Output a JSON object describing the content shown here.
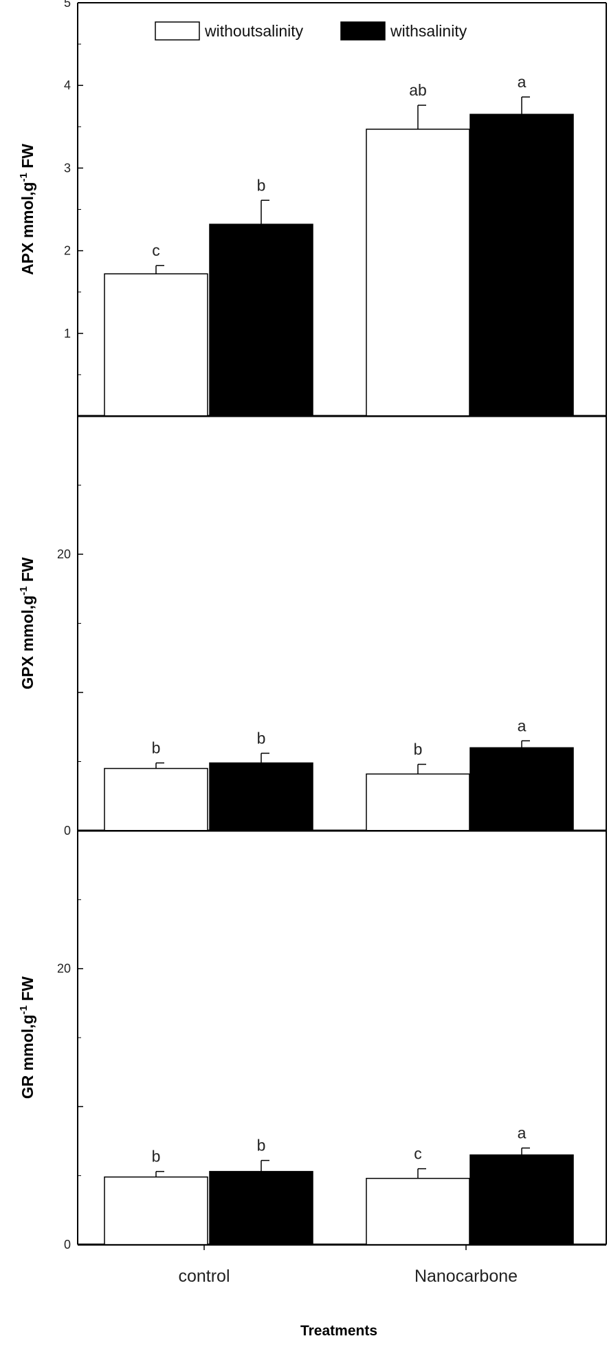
{
  "chart_data": [
    {
      "type": "bar",
      "categories": [
        "control",
        "Nanocarbone"
      ],
      "ylabel": "APX mmol,g-1 FW",
      "ylabel_main": "APX mmol,g",
      "ylabel_sup": "-1",
      "ylabel_tail": " FW",
      "ylim": [
        0,
        5
      ],
      "yticks": [
        1,
        2,
        3,
        4,
        5
      ],
      "ytick_labels": [
        "1",
        "2",
        "3",
        "4",
        "5"
      ],
      "legend": {
        "placement": "top-center",
        "entries": [
          "withoutsalinity",
          "withsalinity"
        ]
      },
      "series": [
        {
          "name": "withoutsalinity",
          "color": "#ffffff",
          "values": [
            1.72,
            3.47
          ],
          "errors": [
            0.1,
            0.29
          ],
          "letters": [
            "c",
            "ab"
          ]
        },
        {
          "name": "withsalinity",
          "color": "#000000",
          "values": [
            2.32,
            3.65
          ],
          "errors": [
            0.29,
            0.21
          ],
          "letters": [
            "b",
            "a"
          ]
        }
      ]
    },
    {
      "type": "bar",
      "categories": [
        "control",
        "Nanocarbone"
      ],
      "ylabel": "GPX mmol,g-1 FW",
      "ylabel_main": "GPX mmol,g",
      "ylabel_sup": "-1",
      "ylabel_tail": " FW",
      "ylim": [
        0,
        30
      ],
      "yticks": [
        0,
        10,
        20
      ],
      "ytick_labels": [
        "0",
        "",
        "20"
      ],
      "series": [
        {
          "name": "withoutsalinity",
          "color": "#ffffff",
          "values": [
            4.5,
            4.1
          ],
          "errors": [
            0.4,
            0.7
          ],
          "letters": [
            "b",
            "b"
          ]
        },
        {
          "name": "withsalinity",
          "color": "#000000",
          "values": [
            4.9,
            6.0
          ],
          "errors": [
            0.7,
            0.5
          ],
          "letters": [
            "b",
            "a"
          ]
        }
      ]
    },
    {
      "type": "bar",
      "categories": [
        "control",
        "Nanocarbone"
      ],
      "ylabel": "GR mmol,g-1 FW",
      "ylabel_main": "GR mmol,g",
      "ylabel_sup": "-1",
      "ylabel_tail": " FW",
      "xlabel": "Treatments",
      "ylim": [
        0,
        30
      ],
      "yticks": [
        0,
        10,
        20
      ],
      "ytick_labels": [
        "0",
        "",
        "20"
      ],
      "series": [
        {
          "name": "withoutsalinity",
          "color": "#ffffff",
          "values": [
            4.9,
            4.8
          ],
          "errors": [
            0.4,
            0.7
          ],
          "letters": [
            "b",
            "c"
          ]
        },
        {
          "name": "withsalinity",
          "color": "#000000",
          "values": [
            5.3,
            6.5
          ],
          "errors": [
            0.8,
            0.5
          ],
          "letters": [
            "b",
            "a"
          ]
        }
      ]
    }
  ]
}
